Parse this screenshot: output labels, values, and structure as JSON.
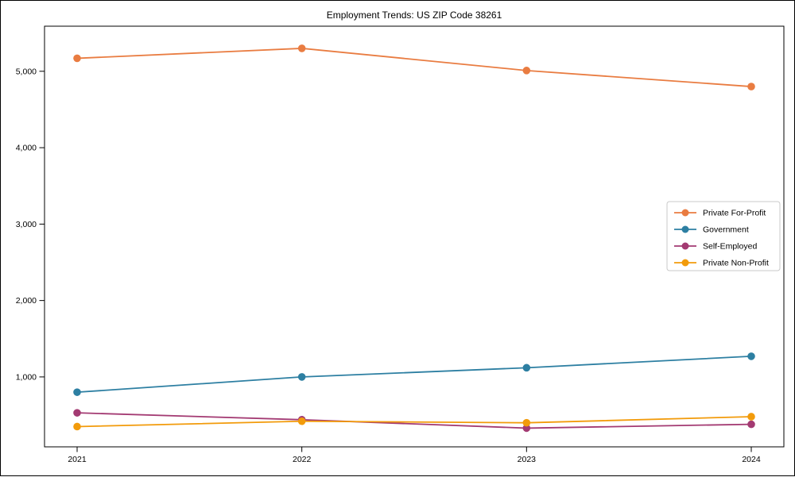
{
  "chart_data": {
    "type": "line",
    "title": "Employment Trends: US ZIP Code 38261",
    "xlabel": "",
    "ylabel": "",
    "categories": [
      "2021",
      "2022",
      "2023",
      "2024"
    ],
    "series": [
      {
        "name": "Private For-Profit",
        "color": "#e97c41",
        "values": [
          5170,
          5300,
          5010,
          4800
        ]
      },
      {
        "name": "Government",
        "color": "#2d7fa2",
        "values": [
          800,
          1000,
          1120,
          1270
        ]
      },
      {
        "name": "Self-Employed",
        "color": "#a33a72",
        "values": [
          530,
          440,
          330,
          380
        ]
      },
      {
        "name": "Private Non-Profit",
        "color": "#f29b0b",
        "values": [
          350,
          420,
          400,
          480
        ]
      }
    ],
    "yticks": [
      1000,
      2000,
      3000,
      4000,
      5000
    ],
    "ytick_labels": [
      "1,000",
      "2,000",
      "3,000",
      "4,000",
      "5,000"
    ],
    "ylim": [
      85,
      5590
    ],
    "grid": false,
    "marker": "circle",
    "legend_position": "right-middle",
    "background_color": "#ffffff",
    "axis_color": "#000000",
    "legend_border_color": "#c9c9c9"
  }
}
